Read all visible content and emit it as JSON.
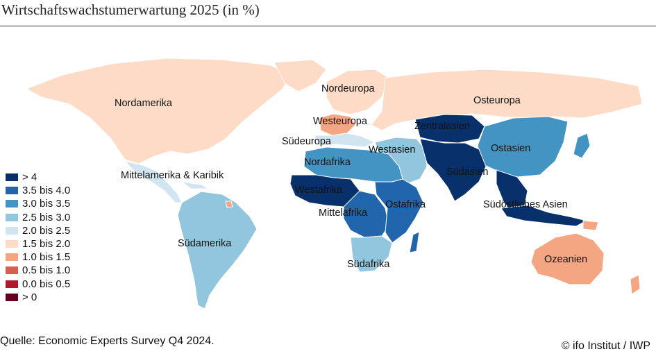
{
  "title": "Wirtschaftswachstumerwartung 2025 (in %)",
  "source": "Quelle: Economic Experts Survey Q4 2024.",
  "copyright": "© ifo Institut / IWP",
  "legend": [
    {
      "label": "> 4",
      "color": "#08306b"
    },
    {
      "label": "3.5 bis 4.0",
      "color": "#2166ac"
    },
    {
      "label": "3.0 bis 3.5",
      "color": "#4393c3"
    },
    {
      "label": "2.5 bis 3.0",
      "color": "#92c5de"
    },
    {
      "label": "2.0 bis 2.5",
      "color": "#d1e5f0"
    },
    {
      "label": "1.5 bis 2.0",
      "color": "#fddbc7"
    },
    {
      "label": "1.0 bis 1.5",
      "color": "#f4a582"
    },
    {
      "label": "0.5 bis 1.0",
      "color": "#d6604d"
    },
    {
      "label": "0.0 bis 0.5",
      "color": "#b2182b"
    },
    {
      "label": "> 0",
      "color": "#67001f"
    }
  ],
  "regions": {
    "nordamerika": "Nordamerika",
    "nordeuropa": "Nordeuropa",
    "osteuropa": "Osteuropa",
    "westeuropa": "Westeuropa",
    "zentralasien": "Zentralasien",
    "suedeuropa": "Südeuropa",
    "westasien": "Westasien",
    "ostasien": "Ostasien",
    "nordafrika": "Nordafrika",
    "mittelamerika": "Mittelamerika & Karibik",
    "suedasien": "Südasien",
    "westafrika": "Westafrika",
    "ostafrika": "Ostafrika",
    "suedostasien": "Südöstliches Asien",
    "mittelafrika": "Mittelafrika",
    "suedamerika": "Südamerika",
    "suedafrika": "Südafrika",
    "ozeanien": "Ozeanien"
  }
}
